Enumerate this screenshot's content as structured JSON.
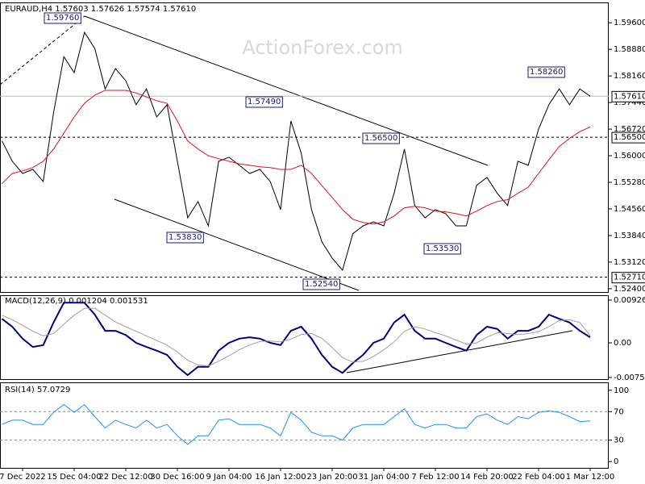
{
  "chart_data": [
    {
      "type": "line",
      "title": "EURAUD,H4  1.57603 1.57626 1.57574 1.57610",
      "watermark": "ActionForex.com",
      "categories": [
        null,
        null,
        "7 Dec 2022",
        null,
        null,
        null,
        null,
        "15 Dec 04:00",
        null,
        null,
        null,
        null,
        "22 Dec 12:00",
        null,
        null,
        null,
        null,
        "30 Dec 16:00",
        null,
        null,
        null,
        null,
        "9 Jan 04:00",
        null,
        null,
        null,
        null,
        "16 Jan 12:00",
        null,
        null,
        null,
        null,
        "23 Jan 20:00",
        null,
        null,
        null,
        null,
        "31 Jan 04:00",
        null,
        null,
        null,
        null,
        "7 Feb 12:00",
        null,
        null,
        null,
        null,
        "14 Feb 20:00",
        null,
        null,
        null,
        null,
        "22 Feb 04:00",
        null,
        null,
        null,
        null,
        "1 Mar 12:00"
      ],
      "series": [
        {
          "color": "#000000",
          "values": [
            1.564,
            1.5585,
            1.5552,
            1.5563,
            1.553,
            1.5716,
            1.5868,
            1.5825,
            1.5934,
            1.589,
            1.5781,
            1.5836,
            1.5803,
            1.5738,
            1.5781,
            1.5705,
            1.5738,
            1.5585,
            1.5432,
            1.5476,
            1.541,
            1.5585,
            1.5596,
            1.5574,
            1.5552,
            1.5563,
            1.553,
            1.5454,
            1.5694,
            1.5607,
            1.5454,
            1.5367,
            1.5323,
            1.529,
            1.5389,
            1.541,
            1.5421,
            1.541,
            1.5498,
            1.5618,
            1.5465,
            1.5432,
            1.5454,
            1.5443,
            1.541,
            1.541,
            1.552,
            1.5541,
            1.5498,
            1.5465,
            1.5585,
            1.5574,
            1.5672,
            1.5738,
            1.5781,
            1.5738,
            1.5781,
            1.5761
          ]
        },
        {
          "color": "#e0101a",
          "values": [
            1.5524,
            1.5552,
            1.5559,
            1.5568,
            1.5585,
            1.5618,
            1.5661,
            1.5705,
            1.5742,
            1.5764,
            1.5777,
            1.5777,
            1.5777,
            1.577,
            1.5759,
            1.5749,
            1.5742,
            1.5694,
            1.564,
            1.5618,
            1.56,
            1.5592,
            1.5585,
            1.5578,
            1.5574,
            1.557,
            1.5568,
            1.5563,
            1.5563,
            1.5574,
            1.5552,
            1.5519,
            1.5487,
            1.5454,
            1.5428,
            1.5419,
            1.5415,
            1.5421,
            1.5437,
            1.5459,
            1.5463,
            1.5459,
            1.545,
            1.5448,
            1.5443,
            1.5437,
            1.545,
            1.5465,
            1.5476,
            1.5481,
            1.5498,
            1.5515,
            1.5552,
            1.5589,
            1.5625,
            1.5647,
            1.5665,
            1.5678
          ]
        }
      ],
      "ylim": [
        1.5231,
        1.6015
      ],
      "yticks": [
        {
          "value": 1.596,
          "label": "1.59600"
        },
        {
          "value": 1.5888,
          "label": "1.58880"
        },
        {
          "value": 1.5816,
          "label": "1.58160"
        },
        {
          "value": 1.5744,
          "label": "1.57440"
        },
        {
          "value": 1.5672,
          "label": "1.56720"
        },
        {
          "value": 1.56,
          "label": "1.56000"
        },
        {
          "value": 1.5528,
          "label": "1.55280"
        },
        {
          "value": 1.5456,
          "label": "1.54560"
        },
        {
          "value": 1.5384,
          "label": "1.53840"
        },
        {
          "value": 1.5312,
          "label": "1.53120"
        },
        {
          "value": 1.524,
          "label": "1.52400"
        }
      ],
      "hlines": [
        {
          "value": 1.565,
          "label": "1.56500"
        },
        {
          "value": 1.5271,
          "label": "1.52710"
        }
      ],
      "last_price": {
        "value": 1.5761,
        "label": "1.57610"
      },
      "annotations": [
        "1.59760",
        "1.57490",
        "1.56500",
        "1.58260",
        "1.53830",
        "1.52540",
        "1.53530"
      ]
    },
    {
      "type": "line",
      "title": "MACD(12,26,9) 0.001204 0.001531",
      "series": [
        {
          "color": "#00007f",
          "values": [
            0.0052,
            0.0035,
            0.0009,
            -0.0009,
            -0.0005,
            0.0044,
            0.0087,
            0.0087,
            0.0087,
            0.0061,
            0.0026,
            0.0026,
            0.0017,
            0.0,
            -0.0009,
            -0.0017,
            -0.0026,
            -0.0052,
            -0.007,
            -0.0052,
            -0.0052,
            -0.0017,
            0.0,
            0.0009,
            0.0012,
            0.0009,
            0.0,
            -0.0005,
            0.0026,
            0.0035,
            0.0009,
            -0.0026,
            -0.0052,
            -0.0065,
            -0.0044,
            -0.0026,
            0.0,
            0.0009,
            0.0044,
            0.0061,
            0.0026,
            0.0009,
            0.0009,
            0.0,
            -0.0009,
            -0.0017,
            0.0017,
            0.0035,
            0.003,
            0.0009,
            0.0026,
            0.0026,
            0.0035,
            0.0061,
            0.0052,
            0.0044,
            0.0026,
            0.001204
          ]
        },
        {
          "color": "#a0a0a0",
          "values": [
            0.006,
            0.005,
            0.0038,
            0.0025,
            0.0015,
            0.002,
            0.004,
            0.006,
            0.0075,
            0.0075,
            0.006,
            0.0045,
            0.0035,
            0.0025,
            0.0015,
            0.0005,
            -0.0005,
            -0.002,
            -0.0038,
            -0.0048,
            -0.005,
            -0.004,
            -0.0028,
            -0.0015,
            -0.0005,
            0.0003,
            0.0004,
            0.0002,
            0.0008,
            0.0018,
            0.002,
            0.001,
            -0.001,
            -0.0032,
            -0.0042,
            -0.004,
            -0.003,
            -0.0015,
            0.0002,
            0.0025,
            0.0035,
            0.003,
            0.0022,
            0.0015,
            0.0006,
            -0.0003,
            0.0,
            0.0012,
            0.0022,
            0.002,
            0.0018,
            0.002,
            0.0024,
            0.0035,
            0.0048,
            0.005,
            0.0044,
            0.001531
          ]
        }
      ],
      "ylim": [
        -0.00787,
        0.01031
      ],
      "yticks": [
        0.009263,
        {
          "value": 0,
          "label": "0.00"
        },
        -0.007517
      ]
    },
    {
      "type": "line",
      "title": "RSI(14) 57.0729",
      "series": [
        {
          "color": "#1e90ff",
          "values": [
            52,
            58,
            58,
            52,
            52,
            69,
            80,
            69,
            80,
            63,
            47,
            58,
            52,
            47,
            58,
            47,
            52,
            36,
            24,
            36,
            36,
            58,
            60,
            52,
            52,
            52,
            47,
            36,
            69,
            58,
            41,
            36,
            36,
            30,
            47,
            52,
            52,
            52,
            63,
            74,
            52,
            47,
            52,
            52,
            47,
            47,
            63,
            67,
            58,
            52,
            63,
            60,
            69,
            71,
            69,
            63,
            56,
            57
          ]
        }
      ],
      "ylim": [
        -8.9,
        111.1
      ],
      "yticks": [
        100,
        70,
        30,
        0
      ]
    }
  ]
}
